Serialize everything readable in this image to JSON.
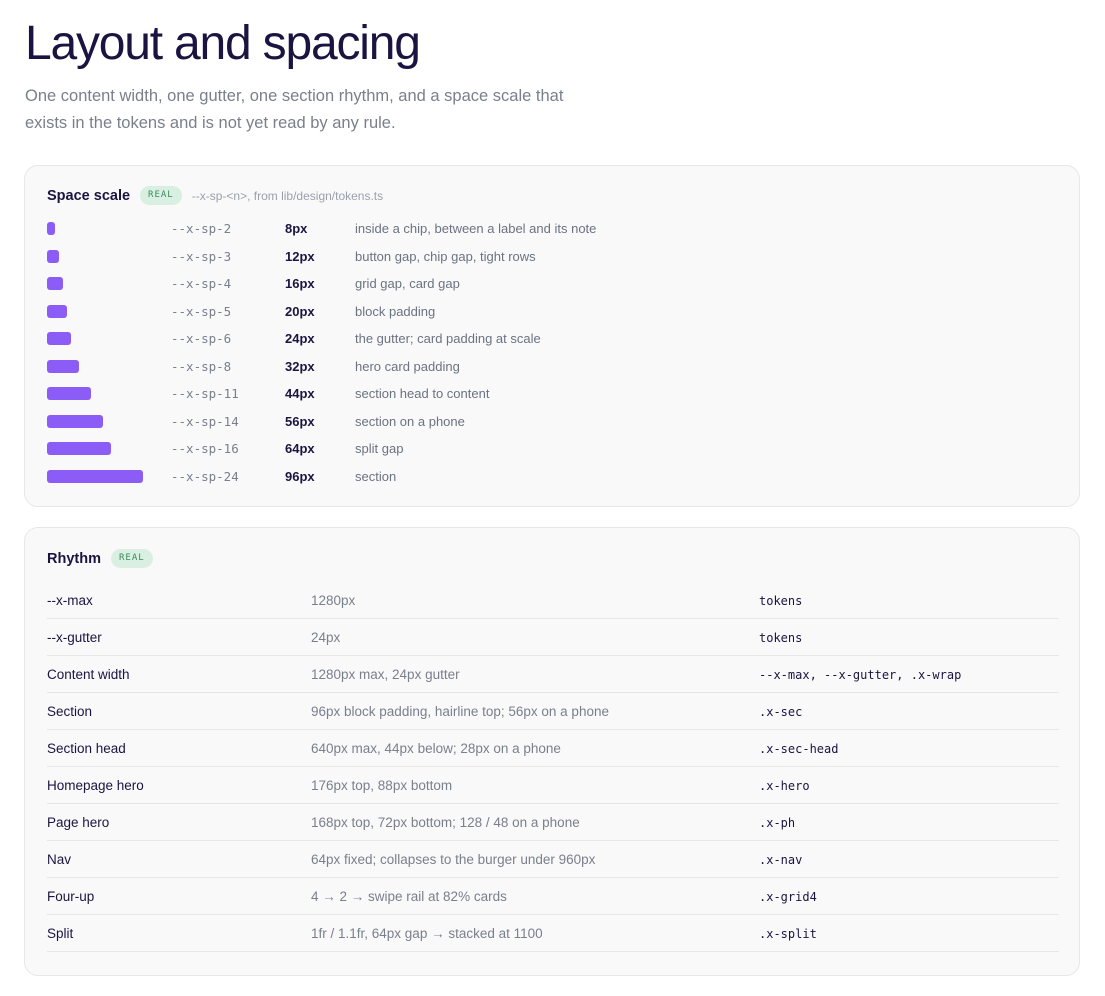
{
  "page": {
    "title": "Layout and spacing",
    "lede": "One content width, one gutter, one section rhythm, and a space scale that exists in the tokens and is not yet read by any rule."
  },
  "space_scale": {
    "title": "Space scale",
    "badge": "REAL",
    "note": "--x-sp-<n>, from lib/design/tokens.ts",
    "bar_color": "#8b5cf6",
    "items": [
      {
        "token": "--x-sp-2",
        "px": "8px",
        "value": 8,
        "desc": "inside a chip, between a label and its note"
      },
      {
        "token": "--x-sp-3",
        "px": "12px",
        "value": 12,
        "desc": "button gap, chip gap, tight rows"
      },
      {
        "token": "--x-sp-4",
        "px": "16px",
        "value": 16,
        "desc": "grid gap, card gap"
      },
      {
        "token": "--x-sp-5",
        "px": "20px",
        "value": 20,
        "desc": "block padding"
      },
      {
        "token": "--x-sp-6",
        "px": "24px",
        "value": 24,
        "desc": "the gutter; card padding at scale"
      },
      {
        "token": "--x-sp-8",
        "px": "32px",
        "value": 32,
        "desc": "hero card padding"
      },
      {
        "token": "--x-sp-11",
        "px": "44px",
        "value": 44,
        "desc": "section head to content"
      },
      {
        "token": "--x-sp-14",
        "px": "56px",
        "value": 56,
        "desc": "section on a phone"
      },
      {
        "token": "--x-sp-16",
        "px": "64px",
        "value": 64,
        "desc": "split gap"
      },
      {
        "token": "--x-sp-24",
        "px": "96px",
        "value": 96,
        "desc": "section"
      }
    ]
  },
  "rhythm": {
    "title": "Rhythm",
    "badge": "REAL",
    "rows": [
      {
        "name": "--x-max",
        "value": "1280px",
        "source": "tokens"
      },
      {
        "name": "--x-gutter",
        "value": "24px",
        "source": "tokens"
      },
      {
        "name": "Content width",
        "value": "1280px max, 24px gutter",
        "source": "--x-max, --x-gutter, .x-wrap"
      },
      {
        "name": "Section",
        "value": "96px block padding, hairline top; 56px on a phone",
        "source": ".x-sec"
      },
      {
        "name": "Section head",
        "value": "640px max, 44px below; 28px on a phone",
        "source": ".x-sec-head"
      },
      {
        "name": "Homepage hero",
        "value": "176px top, 88px bottom",
        "source": ".x-hero"
      },
      {
        "name": "Page hero",
        "value": "168px top, 72px bottom; 128 / 48 on a phone",
        "source": ".x-ph"
      },
      {
        "name": "Nav",
        "value": "64px fixed; collapses to the burger under 960px",
        "source": ".x-nav"
      },
      {
        "name": "Four-up",
        "value": "4 → 2 → swipe rail at 82% cards",
        "source": ".x-grid4"
      },
      {
        "name": "Split",
        "value": "1fr / 1.1fr, 64px gap → stacked at 1100",
        "source": ".x-split"
      }
    ]
  }
}
